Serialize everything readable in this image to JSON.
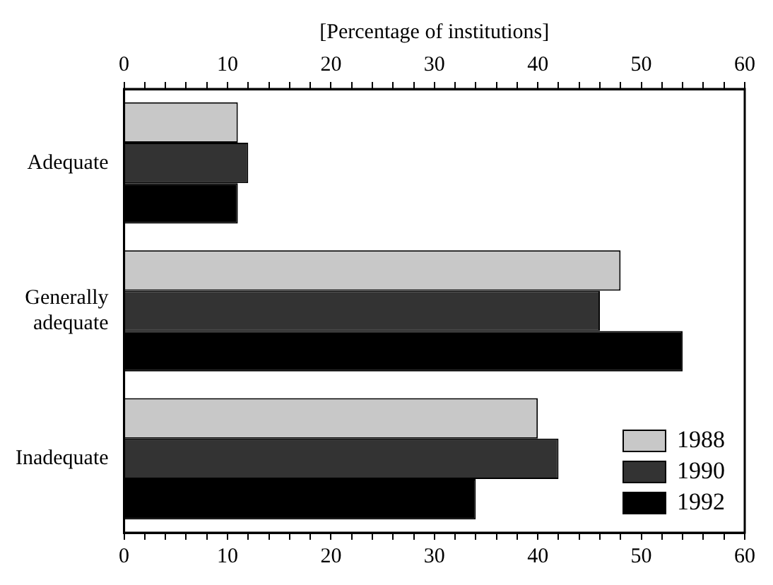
{
  "chart_data": {
    "type": "bar",
    "orientation": "horizontal",
    "x2label": "[Percentage of institutions]",
    "categories": [
      "Adequate",
      "Generally\nadequate",
      "Inadequate"
    ],
    "series": [
      {
        "name": "1988",
        "color": "#c8c8c8",
        "values": [
          11,
          48,
          40
        ]
      },
      {
        "name": "1990",
        "color": "#333333",
        "values": [
          12,
          46,
          42
        ]
      },
      {
        "name": "1992",
        "color": "#000000",
        "values": [
          11,
          54,
          34
        ]
      }
    ],
    "xlim": [
      0,
      60
    ],
    "xticks": [
      0,
      {
        "value": 2,
        "label": null
      },
      {
        "value": 4,
        "label": null
      },
      {
        "value": 6,
        "label": null
      },
      {
        "value": 8,
        "label": null
      },
      10,
      {
        "value": 12,
        "label": null
      },
      {
        "value": 14,
        "label": null
      },
      {
        "value": 16,
        "label": null
      },
      {
        "value": 18,
        "label": null
      },
      20,
      {
        "value": 22,
        "label": null
      },
      {
        "value": 24,
        "label": null
      },
      {
        "value": 26,
        "label": null
      },
      {
        "value": 28,
        "label": null
      },
      30,
      {
        "value": 32,
        "label": null
      },
      {
        "value": 34,
        "label": null
      },
      {
        "value": 36,
        "label": null
      },
      {
        "value": 38,
        "label": null
      },
      40,
      {
        "value": 42,
        "label": null
      },
      {
        "value": 44,
        "label": null
      },
      {
        "value": 46,
        "label": null
      },
      {
        "value": 48,
        "label": null
      },
      50,
      {
        "value": 52,
        "label": null
      },
      {
        "value": 54,
        "label": null
      },
      {
        "value": 56,
        "label": null
      },
      {
        "value": 58,
        "label": null
      },
      60
    ],
    "x2lim": [
      0,
      60
    ],
    "x2ticks": [
      0,
      {
        "value": 2,
        "label": null
      },
      {
        "value": 4,
        "label": null
      },
      {
        "value": 6,
        "label": null
      },
      {
        "value": 8,
        "label": null
      },
      10,
      {
        "value": 12,
        "label": null
      },
      {
        "value": 14,
        "label": null
      },
      {
        "value": 16,
        "label": null
      },
      {
        "value": 18,
        "label": null
      },
      20,
      {
        "value": 22,
        "label": null
      },
      {
        "value": 24,
        "label": null
      },
      {
        "value": 26,
        "label": null
      },
      {
        "value": 28,
        "label": null
      },
      30,
      {
        "value": 32,
        "label": null
      },
      {
        "value": 34,
        "label": null
      },
      {
        "value": 36,
        "label": null
      },
      {
        "value": 38,
        "label": null
      },
      40,
      {
        "value": 42,
        "label": null
      },
      {
        "value": 44,
        "label": null
      },
      {
        "value": 46,
        "label": null
      },
      {
        "value": 48,
        "label": null
      },
      50,
      {
        "value": 52,
        "label": null
      },
      {
        "value": 54,
        "label": null
      },
      {
        "value": 56,
        "label": null
      },
      {
        "value": 58,
        "label": null
      },
      60
    ],
    "grid": false,
    "legend": "bottom right"
  }
}
